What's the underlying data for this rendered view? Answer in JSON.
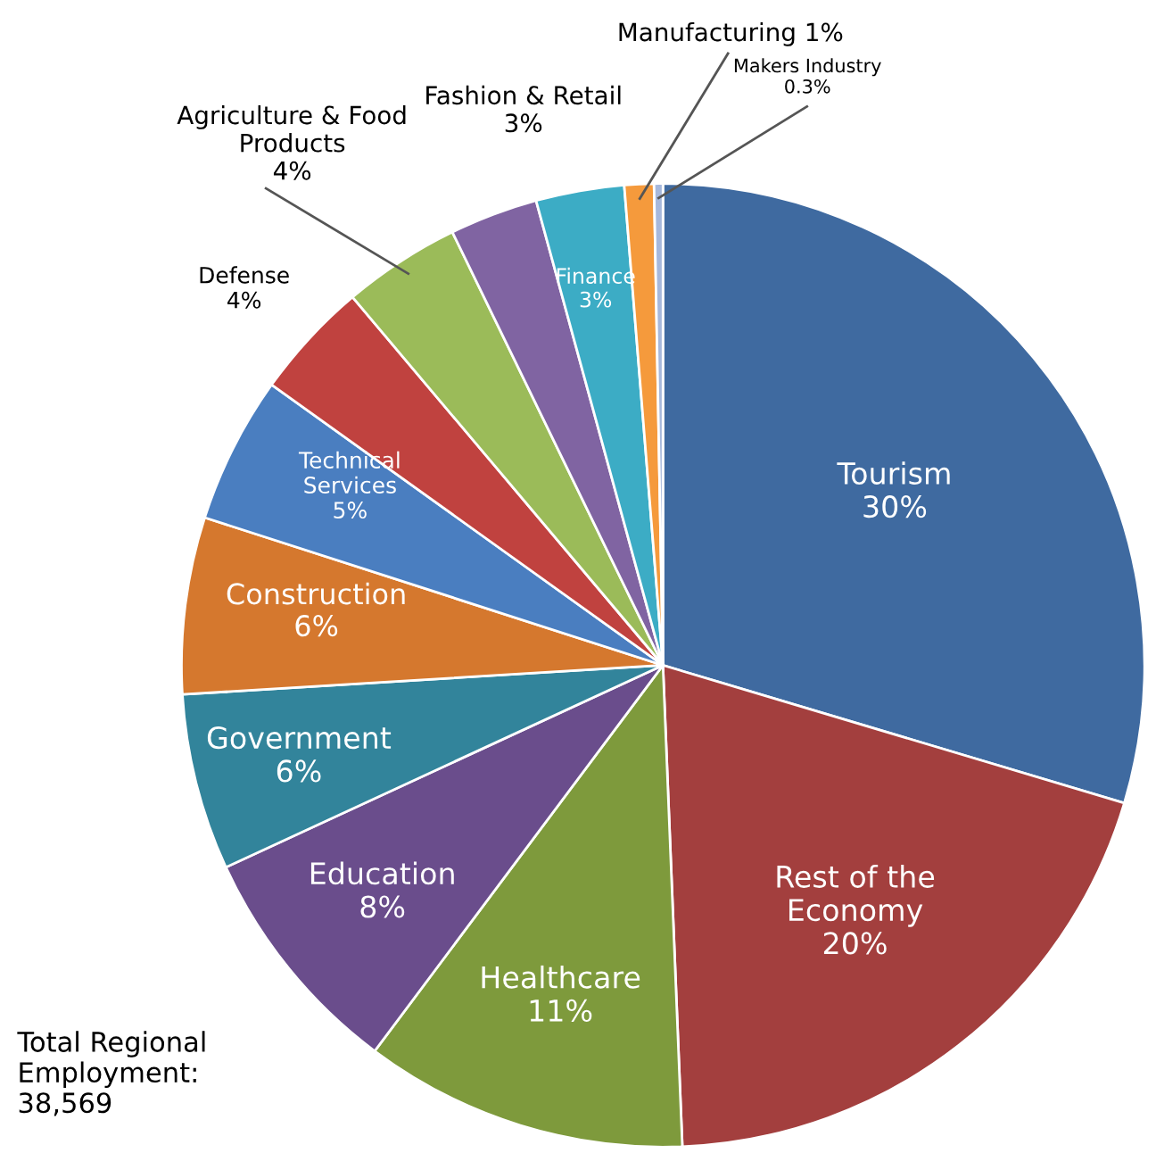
{
  "chart_data": {
    "type": "pie",
    "categories": [
      "Tourism",
      "Rest of the\nEconomy",
      "Healthcare",
      "Education",
      "Government",
      "Construction",
      "Technical\nServices",
      "Defense",
      "Agriculture & Food\nProducts",
      "Fashion & Retail",
      "Finance",
      "Manufacturing",
      "Makers Industry"
    ],
    "values": [
      30,
      20,
      11,
      8,
      6,
      6,
      5,
      4,
      4,
      3,
      3,
      1,
      0.3
    ],
    "colors": [
      "#3f6aa0",
      "#a33f3e",
      "#7e9a3c",
      "#6a4d8c",
      "#32849b",
      "#d5782e",
      "#4a7ec0",
      "#c0423f",
      "#9bbb59",
      "#8064a2",
      "#3cacc5",
      "#f59a3c",
      "#a6b8dc"
    ],
    "data_labels": true,
    "value_labels": [
      "30%",
      "20%",
      "11%",
      "8%",
      "6%",
      "6%",
      "5%",
      "4%",
      "4%",
      "3%",
      "3%",
      "1%",
      "0.3%"
    ],
    "annotations": [
      "Total Regional\nEmployment:\n38,569"
    ]
  }
}
